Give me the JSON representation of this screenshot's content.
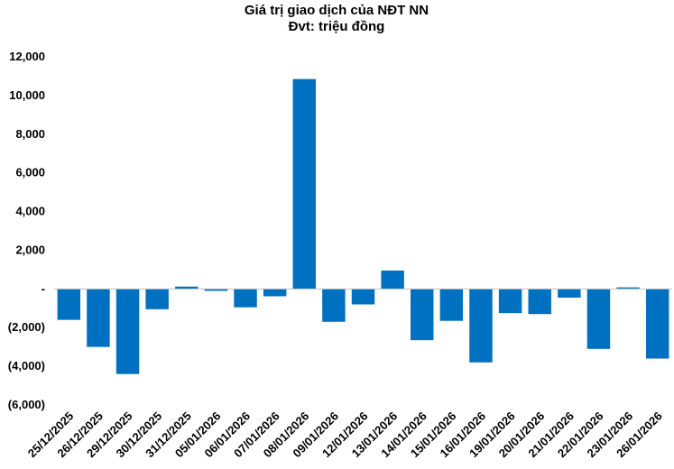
{
  "chart_data": {
    "type": "bar",
    "title": "Giá trị giao dịch của NĐT NN",
    "subtitle": "Đvt: triệu đồng",
    "categories": [
      "25/12/2025",
      "26/12/2025",
      "29/12/2025",
      "30/12/2025",
      "31/12/2025",
      "05/01/2026",
      "06/01/2026",
      "07/01/2026",
      "08/01/2026",
      "09/01/2026",
      "12/01/2026",
      "13/01/2026",
      "14/01/2026",
      "15/01/2026",
      "16/01/2026",
      "19/01/2026",
      "20/01/2026",
      "21/01/2026",
      "22/01/2026",
      "23/01/2026",
      "26/01/2026"
    ],
    "values": [
      -1600,
      -3000,
      -4400,
      -1050,
      120,
      -100,
      -950,
      -380,
      10850,
      -1700,
      -800,
      950,
      -2650,
      -1650,
      -3800,
      -1250,
      -1300,
      -450,
      -3100,
      80,
      -3600
    ],
    "ylim": [
      -6000,
      12000
    ],
    "yticks": [
      12000,
      10000,
      8000,
      6000,
      4000,
      2000,
      0,
      -2000,
      -4000,
      -6000
    ],
    "ytick_labels": [
      "12,000",
      "10,000",
      "8,000",
      "6,000",
      "4,000",
      "2,000",
      "-",
      "(2,000)",
      "(4,000)",
      "(6,000)"
    ],
    "bar_color": "#0070C0",
    "grid": false,
    "legend": "none"
  }
}
